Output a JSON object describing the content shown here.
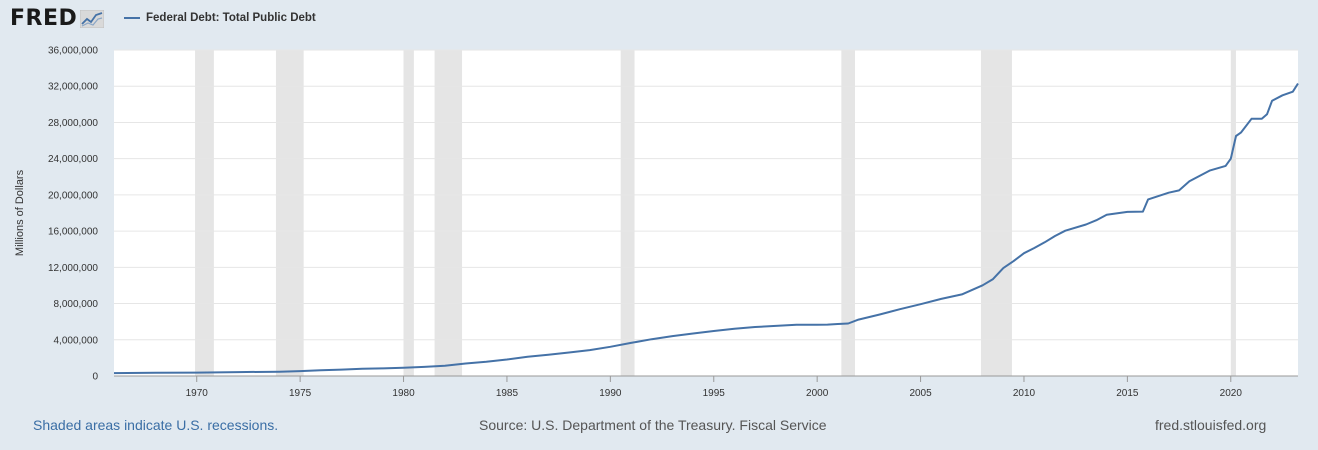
{
  "header": {
    "logo_text": "FRED",
    "legend_label": "Federal Debt: Total Public Debt"
  },
  "footer": {
    "recession_note": "Shaded areas indicate U.S. recessions.",
    "source": "Source: U.S. Department of the Treasury. Fiscal Service",
    "site": "fred.stlouisfed.org"
  },
  "colors": {
    "line": "#4572a7",
    "recession": "#e5e5e5",
    "grid": "#e6e6e6",
    "background": "#e1e9f0"
  },
  "chart_data": {
    "type": "line",
    "title": "",
    "xlabel": "",
    "ylabel": "Millions of Dollars",
    "xlim": [
      1966.0,
      2023.25
    ],
    "ylim": [
      0,
      36000000
    ],
    "x_ticks": [
      "1970",
      "1975",
      "1980",
      "1985",
      "1990",
      "1995",
      "2000",
      "2005",
      "2010",
      "2015",
      "2020"
    ],
    "y_ticks": [
      "0",
      "4,000,000",
      "8,000,000",
      "12,000,000",
      "16,000,000",
      "20,000,000",
      "24,000,000",
      "28,000,000",
      "32,000,000",
      "36,000,000"
    ],
    "grid": true,
    "legend_position": "top-left",
    "recessions": [
      [
        1969.92,
        1970.83
      ],
      [
        1973.83,
        1975.17
      ],
      [
        1980.0,
        1980.5
      ],
      [
        1981.5,
        1982.83
      ],
      [
        1990.5,
        1991.17
      ],
      [
        2001.17,
        2001.83
      ],
      [
        2007.92,
        2009.42
      ],
      [
        2020.0,
        2020.25
      ]
    ],
    "series": [
      {
        "name": "Federal Debt: Total Public Debt",
        "x": [
          1966.0,
          1968,
          1970,
          1972,
          1974,
          1975,
          1976,
          1977,
          1978,
          1979,
          1980,
          1981,
          1982,
          1983,
          1984,
          1985,
          1986,
          1987,
          1988,
          1989,
          1990,
          1991,
          1992,
          1993,
          1994,
          1995,
          1996,
          1997,
          1998,
          1999,
          2000,
          2000.5,
          2001,
          2001.5,
          2002,
          2003,
          2004,
          2005,
          2006,
          2007,
          2008,
          2008.5,
          2009,
          2009.5,
          2010,
          2010.5,
          2011,
          2011.5,
          2012,
          2013,
          2013.5,
          2014,
          2015,
          2015.75,
          2016,
          2017,
          2017.5,
          2018,
          2019,
          2019.75,
          2020,
          2020.25,
          2020.5,
          2021,
          2021.5,
          2021.75,
          2022,
          2022.5,
          2023,
          2023.25
        ],
        "values": [
          320000,
          350000,
          380000,
          430000,
          480000,
          540000,
          640000,
          710000,
          790000,
          840000,
          910000,
          1000000,
          1140000,
          1380000,
          1570000,
          1820000,
          2130000,
          2350000,
          2600000,
          2860000,
          3230000,
          3660000,
          4060000,
          4410000,
          4690000,
          4970000,
          5220000,
          5410000,
          5530000,
          5650000,
          5670000,
          5680000,
          5740000,
          5800000,
          6230000,
          6780000,
          7380000,
          7930000,
          8510000,
          9010000,
          10020000,
          10700000,
          11910000,
          12690000,
          13560000,
          14130000,
          14760000,
          15460000,
          16050000,
          16730000,
          17200000,
          17800000,
          18120000,
          18150000,
          19500000,
          20240000,
          20500000,
          21500000,
          22700000,
          23200000,
          24000000,
          26500000,
          26900000,
          28400000,
          28400000,
          28900000,
          30400000,
          31000000,
          31400000,
          32300000
        ]
      }
    ]
  }
}
